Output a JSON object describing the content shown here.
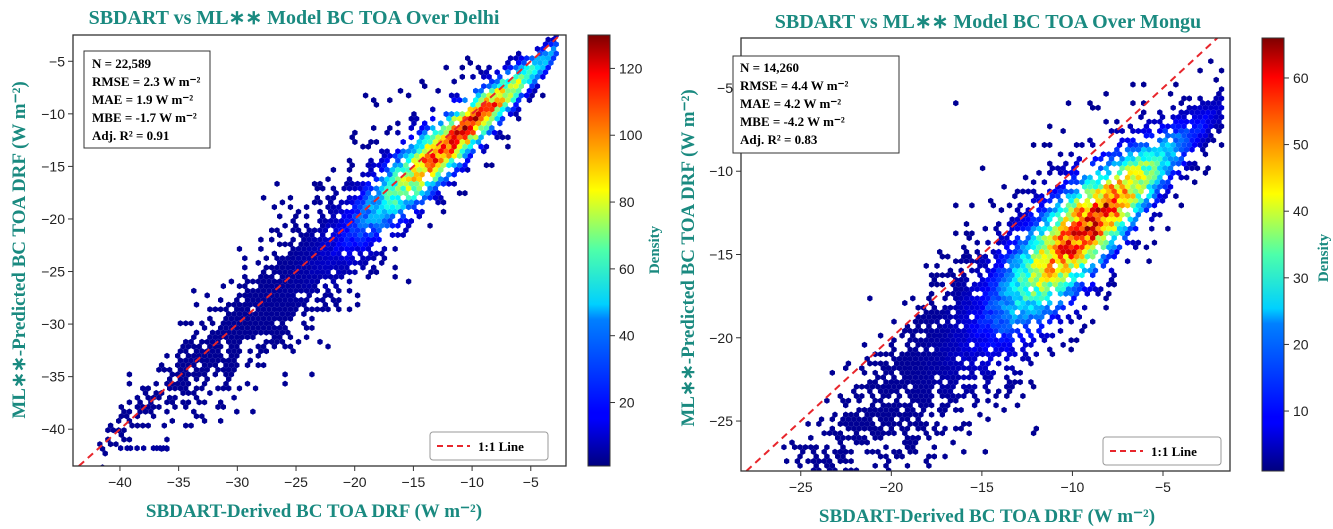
{
  "chart_data": [
    {
      "type": "scatter",
      "subtype": "hexbin-density",
      "title": "SBDART vs ML∗∗ Model BC TOA Over Delhi",
      "xlabel": "SBDART-Derived BC TOA DRF (W m⁻²)",
      "ylabel": "ML∗∗-Predicted BC TOA DRF (W m⁻²)",
      "xlim": [
        -44,
        -2
      ],
      "ylim": [
        -43.5,
        -2.5
      ],
      "xticks": [
        -40,
        -35,
        -30,
        -25,
        -20,
        -15,
        -10,
        -5
      ],
      "yticks": [
        -40,
        -35,
        -30,
        -25,
        -20,
        -15,
        -10,
        -5
      ],
      "grid": false,
      "colorbar": {
        "label": "Density",
        "min": 1,
        "max": 130,
        "ticks": [
          20,
          40,
          60,
          80,
          100,
          120
        ],
        "colormap": "jet"
      },
      "stats": [
        "N = 22,589",
        "RMSE = 2.3 W m⁻²",
        "MAE = 1.9 W m⁻²",
        "MBE = -1.7 W m⁻²",
        "Adj. R² = 0.91"
      ],
      "legend": {
        "label": "1:1 Line",
        "position": "bottom-right"
      },
      "reference_line": {
        "name": "1:1 Line",
        "slope": 1,
        "intercept": 0,
        "color": "#e8262c"
      },
      "data_cloud": {
        "x_range": [
          -41.5,
          -3
        ],
        "slope": 0.97,
        "intercept": -1.2,
        "spread": 1.3,
        "density_peak_x": -11,
        "outlier_row": {
          "y": -41.8,
          "x_range": [
            -40.5,
            -35.5
          ]
        }
      }
    },
    {
      "type": "scatter",
      "subtype": "hexbin-density",
      "title": "SBDART vs ML∗∗ Model BC TOA Over Mongu",
      "xlabel": "SBDART-Derived BC TOA DRF (W m⁻²)",
      "ylabel": "ML∗∗-Predicted BC TOA DRF (W m⁻²)",
      "xlim": [
        -28.3,
        -1.3
      ],
      "ylim": [
        -28,
        -2
      ],
      "xticks": [
        -25,
        -20,
        -15,
        -10,
        -5
      ],
      "yticks": [
        -25,
        -20,
        -15,
        -10,
        -5
      ],
      "grid": false,
      "colorbar": {
        "label": "Density",
        "min": 1,
        "max": 66,
        "ticks": [
          10,
          20,
          30,
          40,
          50,
          60
        ],
        "colormap": "jet"
      },
      "stats": [
        "N = 14,260",
        "RMSE = 4.4 W m⁻²",
        "MAE = 4.2 W m⁻²",
        "MBE = -4.2 W m⁻²",
        "Adj. R² = 0.83"
      ],
      "legend": {
        "label": "1:1 Line",
        "position": "bottom-right"
      },
      "reference_line": {
        "name": "1:1 Line",
        "slope": 1,
        "intercept": 0,
        "color": "#e8262c"
      },
      "data_cloud": {
        "x_range": [
          -26,
          -2
        ],
        "slope": 0.95,
        "intercept": -4.6,
        "spread": 1.2,
        "density_peak_x": -9,
        "outlier_row": null
      }
    }
  ]
}
